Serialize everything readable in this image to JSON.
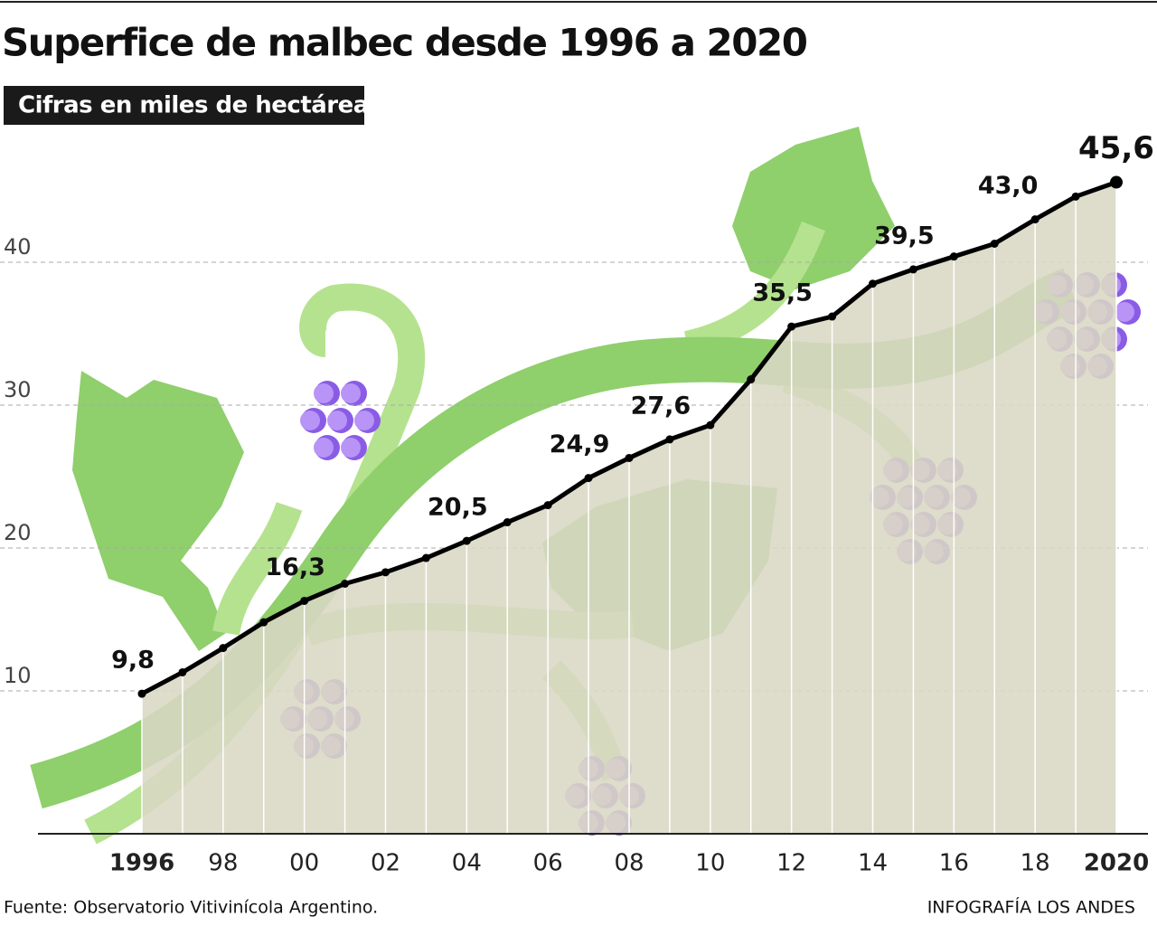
{
  "chart_data": {
    "type": "area-line",
    "title": "Superfice de malbec desde 1996 a 2020",
    "subtitle": "Cifras en miles de hectáreas",
    "source": "Fuente: Observatorio Vitivinícola Argentino.",
    "credit": "INFOGRAFÍA LOS ANDES",
    "categories": [
      "1996",
      null,
      "98",
      null,
      "00",
      null,
      "02",
      null,
      "04",
      null,
      "06",
      null,
      "08",
      null,
      "10",
      null,
      "12",
      null,
      "14",
      null,
      "16",
      null,
      "18",
      null,
      "2020"
    ],
    "values": [
      9.8,
      11.3,
      13.0,
      14.8,
      16.3,
      17.5,
      18.3,
      19.3,
      20.5,
      21.8,
      23.0,
      24.9,
      26.3,
      27.6,
      28.6,
      31.8,
      35.5,
      36.2,
      38.5,
      39.5,
      40.4,
      41.3,
      43.0,
      44.6,
      45.6
    ],
    "value_labels": [
      "9,8",
      null,
      null,
      null,
      "16,3",
      null,
      null,
      null,
      "20,5",
      null,
      null,
      "24,9",
      null,
      "27,6",
      null,
      null,
      "35,5",
      null,
      null,
      "39,5",
      null,
      null,
      "43,0",
      null,
      "45,6"
    ],
    "color": "#000000",
    "area_color": "#dad7c4",
    "ylim": [
      0,
      48
    ],
    "yticks": [
      10,
      20,
      30,
      40
    ],
    "grid": true
  }
}
